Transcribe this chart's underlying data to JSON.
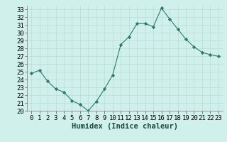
{
  "x": [
    0,
    1,
    2,
    3,
    4,
    5,
    6,
    7,
    8,
    9,
    10,
    11,
    12,
    13,
    14,
    15,
    16,
    17,
    18,
    19,
    20,
    21,
    22,
    23
  ],
  "y": [
    24.8,
    25.2,
    23.8,
    22.8,
    22.4,
    21.3,
    20.8,
    20.0,
    21.2,
    22.8,
    24.6,
    28.5,
    29.5,
    31.2,
    31.2,
    30.8,
    33.2,
    31.8,
    30.5,
    29.2,
    28.2,
    27.5,
    27.2,
    27.0
  ],
  "xlabel": "Humidex (Indice chaleur)",
  "xlim": [
    -0.5,
    23.5
  ],
  "ylim": [
    20,
    33.5
  ],
  "yticks": [
    20,
    21,
    22,
    23,
    24,
    25,
    26,
    27,
    28,
    29,
    30,
    31,
    32,
    33
  ],
  "xticks": [
    0,
    1,
    2,
    3,
    4,
    5,
    6,
    7,
    8,
    9,
    10,
    11,
    12,
    13,
    14,
    15,
    16,
    17,
    18,
    19,
    20,
    21,
    22,
    23
  ],
  "line_color": "#2d7a6a",
  "marker_color": "#2d7a6a",
  "bg_color": "#d0f0ec",
  "grid_color": "#b8ddd8",
  "tick_label_fontsize": 6.5,
  "xlabel_fontsize": 7.5,
  "plot_bg": "#d0f0ec"
}
